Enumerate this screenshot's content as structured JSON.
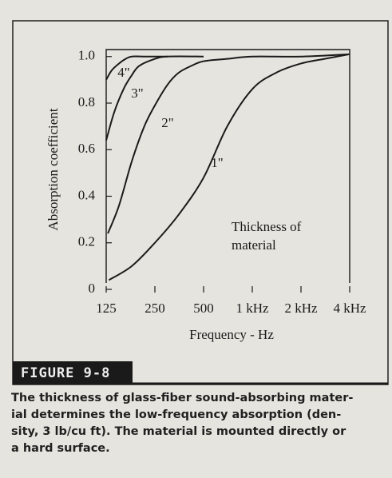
{
  "chart_data": {
    "type": "line",
    "ylabel": "Absorption coefficient",
    "xlabel": "Frequency - Hz",
    "xscale": "log",
    "xlim": [
      125,
      4000
    ],
    "xticks": [
      125,
      250,
      500,
      {
        "value": 1000,
        "label": "1 kHz"
      },
      {
        "value": 2000,
        "label": "2 kHz"
      },
      {
        "value": 4000,
        "label": "4 kHz"
      }
    ],
    "ylim": [
      0,
      1.03
    ],
    "yticks": [
      0,
      0.2,
      0.4,
      0.6,
      0.8,
      {
        "value": 1,
        "label": "1.0"
      }
    ],
    "series": [
      {
        "name": "1\"",
        "color": "#1a1a1a",
        "x": [
          130,
          180,
          250,
          350,
          500,
          700,
          1000,
          1400,
          2000,
          2800,
          4000
        ],
        "values": [
          0.04,
          0.1,
          0.2,
          0.32,
          0.48,
          0.7,
          0.86,
          0.93,
          0.97,
          0.99,
          1.01
        ]
      },
      {
        "name": "2\"",
        "color": "#1a1a1a",
        "x": [
          128,
          150,
          180,
          215,
          250,
          300,
          350,
          420,
          500,
          700,
          1000,
          2000,
          4000
        ],
        "values": [
          0.24,
          0.36,
          0.55,
          0.7,
          0.79,
          0.88,
          0.93,
          0.96,
          0.98,
          0.99,
          1.0,
          1.0,
          1.01
        ]
      },
      {
        "name": "3\"",
        "color": "#1a1a1a",
        "x": [
          125,
          140,
          160,
          180,
          200,
          250,
          300,
          500
        ],
        "values": [
          0.64,
          0.76,
          0.86,
          0.92,
          0.96,
          0.99,
          1.0,
          1.0
        ]
      },
      {
        "name": "4\"",
        "color": "#1a1a1a",
        "x": [
          125,
          135,
          150,
          165,
          180,
          220,
          300
        ],
        "values": [
          0.9,
          0.94,
          0.97,
          0.99,
          1.0,
          1.0,
          1.0
        ]
      }
    ],
    "annotation": [
      "Thickness of",
      "material"
    ]
  },
  "figure_label": "FIGURE 9-8",
  "caption": [
    "The thickness of glass-fiber sound-absorbing mater-",
    "ial determines the low-frequency absorption (den-",
    "sity, 3 lb/cu ft). The material is mounted directly or",
    "a hard surface."
  ]
}
